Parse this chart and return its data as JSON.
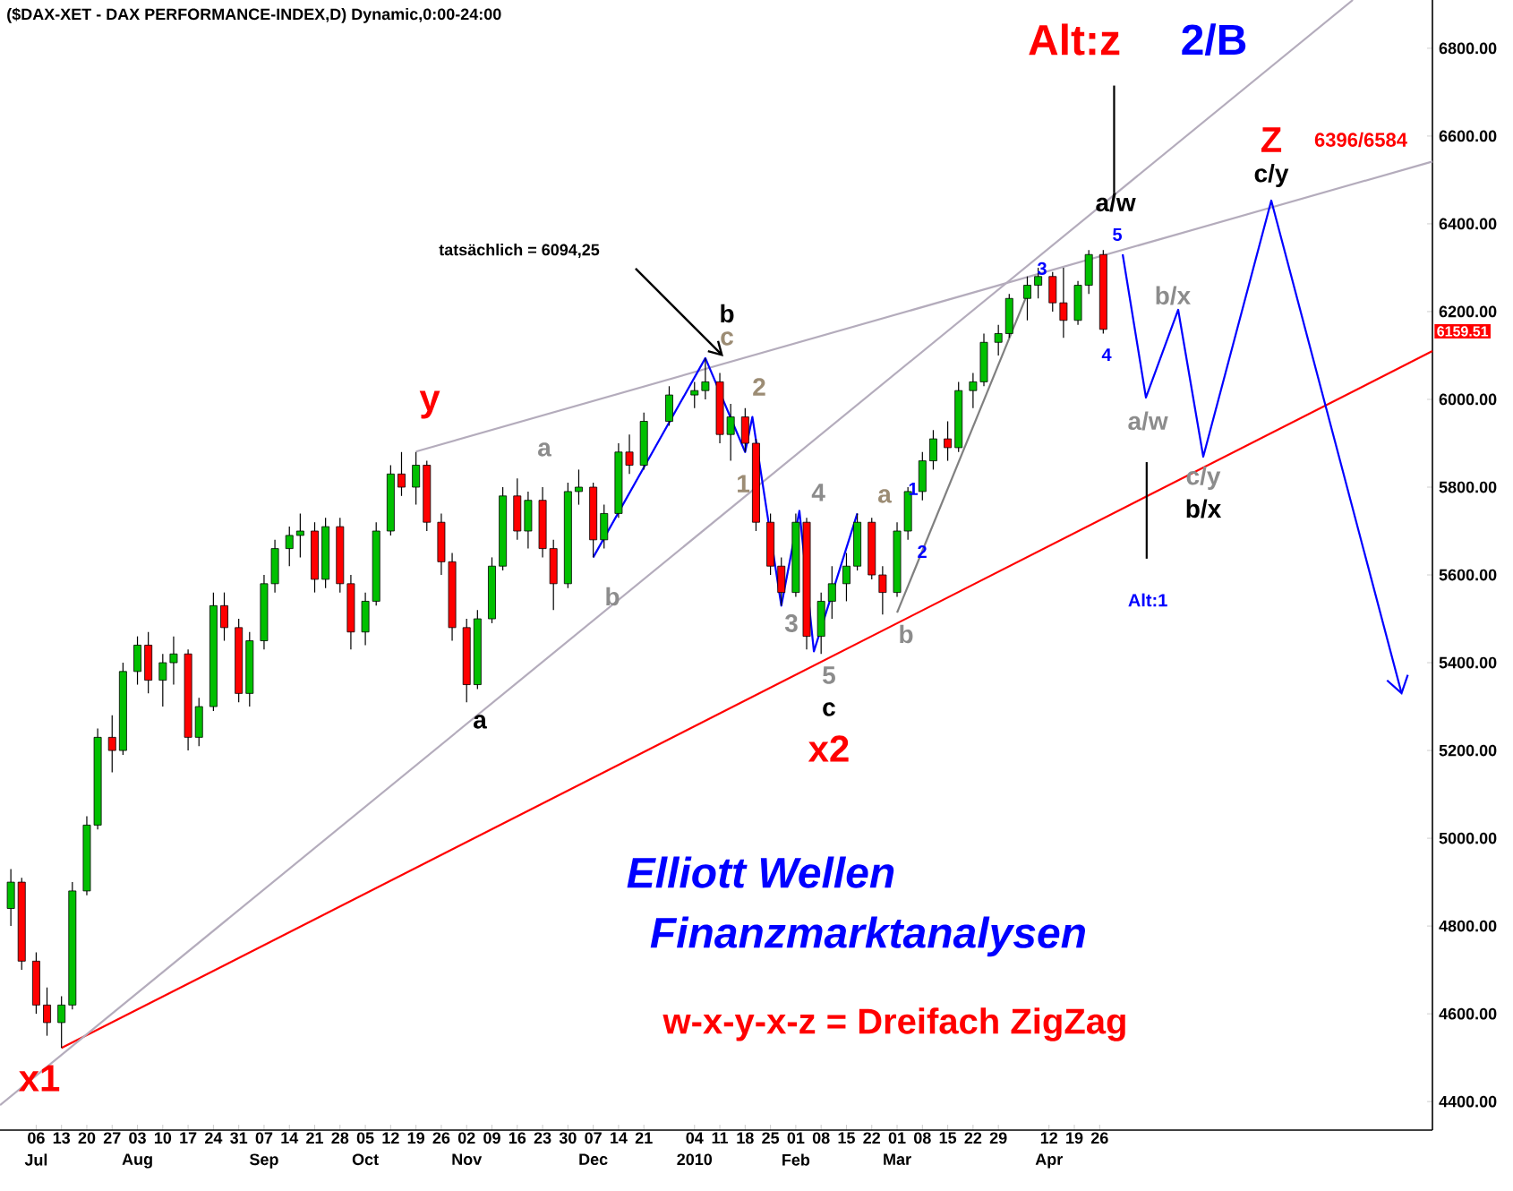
{
  "chart_data": {
    "type": "candlestick",
    "title": "($DAX-XET - DAX PERFORMANCE-INDEX,D) Dynamic,0:00-24:00",
    "x": [
      "2009-06-29",
      "2009-07-02",
      "2009-07-06",
      "2009-07-09",
      "2009-07-13",
      "2009-07-16",
      "2009-07-20",
      "2009-07-23",
      "2009-07-27",
      "2009-07-30",
      "2009-08-03",
      "2009-08-06",
      "2009-08-10",
      "2009-08-13",
      "2009-08-17",
      "2009-08-20",
      "2009-08-24",
      "2009-08-27",
      "2009-08-31",
      "2009-09-03",
      "2009-09-07",
      "2009-09-10",
      "2009-09-14",
      "2009-09-17",
      "2009-09-21",
      "2009-09-24",
      "2009-09-28",
      "2009-10-01",
      "2009-10-05",
      "2009-10-08",
      "2009-10-12",
      "2009-10-15",
      "2009-10-19",
      "2009-10-22",
      "2009-10-26",
      "2009-10-29",
      "2009-11-02",
      "2009-11-05",
      "2009-11-09",
      "2009-11-12",
      "2009-11-16",
      "2009-11-19",
      "2009-11-23",
      "2009-11-26",
      "2009-11-30",
      "2009-12-03",
      "2009-12-07",
      "2009-12-10",
      "2009-12-14",
      "2009-12-17",
      "2009-12-21",
      "2009-12-28",
      "2010-01-04",
      "2010-01-07",
      "2010-01-11",
      "2010-01-14",
      "2010-01-18",
      "2010-01-21",
      "2010-01-25",
      "2010-01-28",
      "2010-02-01",
      "2010-02-04",
      "2010-02-08",
      "2010-02-11",
      "2010-02-15",
      "2010-02-18",
      "2010-02-22",
      "2010-02-25",
      "2010-03-01",
      "2010-03-04",
      "2010-03-08",
      "2010-03-11",
      "2010-03-15",
      "2010-03-18",
      "2010-03-22",
      "2010-03-25",
      "2010-03-29",
      "2010-04-01",
      "2010-04-06",
      "2010-04-09",
      "2010-04-13",
      "2010-04-16",
      "2010-04-20",
      "2010-04-23",
      "2010-04-27"
    ],
    "ohlc": [
      [
        4840,
        4930,
        4800,
        4900
      ],
      [
        4900,
        4910,
        4700,
        4720
      ],
      [
        4720,
        4740,
        4600,
        4620
      ],
      [
        4620,
        4660,
        4550,
        4580
      ],
      [
        4580,
        4640,
        4522,
        4620
      ],
      [
        4620,
        4900,
        4610,
        4880
      ],
      [
        4880,
        5050,
        4870,
        5030
      ],
      [
        5030,
        5250,
        5020,
        5230
      ],
      [
        5230,
        5280,
        5150,
        5200
      ],
      [
        5200,
        5400,
        5190,
        5380
      ],
      [
        5380,
        5460,
        5350,
        5440
      ],
      [
        5440,
        5470,
        5330,
        5360
      ],
      [
        5360,
        5420,
        5300,
        5400
      ],
      [
        5400,
        5460,
        5350,
        5420
      ],
      [
        5420,
        5430,
        5200,
        5230
      ],
      [
        5230,
        5320,
        5210,
        5300
      ],
      [
        5300,
        5560,
        5290,
        5530
      ],
      [
        5530,
        5560,
        5450,
        5480
      ],
      [
        5480,
        5500,
        5310,
        5330
      ],
      [
        5330,
        5470,
        5300,
        5450
      ],
      [
        5450,
        5600,
        5430,
        5580
      ],
      [
        5580,
        5680,
        5560,
        5660
      ],
      [
        5660,
        5710,
        5620,
        5690
      ],
      [
        5690,
        5740,
        5640,
        5700
      ],
      [
        5700,
        5720,
        5560,
        5590
      ],
      [
        5590,
        5730,
        5570,
        5710
      ],
      [
        5710,
        5730,
        5560,
        5580
      ],
      [
        5580,
        5600,
        5430,
        5470
      ],
      [
        5470,
        5560,
        5440,
        5540
      ],
      [
        5540,
        5720,
        5530,
        5700
      ],
      [
        5700,
        5850,
        5690,
        5830
      ],
      [
        5830,
        5880,
        5780,
        5800
      ],
      [
        5800,
        5880,
        5760,
        5850
      ],
      [
        5850,
        5860,
        5700,
        5720
      ],
      [
        5720,
        5740,
        5600,
        5630
      ],
      [
        5630,
        5650,
        5450,
        5480
      ],
      [
        5480,
        5500,
        5310,
        5350
      ],
      [
        5350,
        5520,
        5340,
        5500
      ],
      [
        5500,
        5640,
        5490,
        5620
      ],
      [
        5620,
        5800,
        5610,
        5780
      ],
      [
        5780,
        5820,
        5680,
        5700
      ],
      [
        5700,
        5790,
        5660,
        5770
      ],
      [
        5770,
        5800,
        5640,
        5660
      ],
      [
        5660,
        5680,
        5520,
        5580
      ],
      [
        5580,
        5810,
        5570,
        5790
      ],
      [
        5790,
        5840,
        5760,
        5800
      ],
      [
        5800,
        5810,
        5640,
        5680
      ],
      [
        5680,
        5760,
        5660,
        5740
      ],
      [
        5740,
        5900,
        5730,
        5880
      ],
      [
        5880,
        5920,
        5830,
        5850
      ],
      [
        5850,
        5970,
        5840,
        5950
      ],
      [
        5950,
        6030,
        5940,
        6010
      ],
      [
        6010,
        6040,
        5980,
        6020
      ],
      [
        6020,
        6094,
        6000,
        6040
      ],
      [
        6040,
        6060,
        5900,
        5920
      ],
      [
        5920,
        5990,
        5860,
        5960
      ],
      [
        5960,
        5980,
        5880,
        5900
      ],
      [
        5900,
        5910,
        5700,
        5720
      ],
      [
        5720,
        5740,
        5600,
        5620
      ],
      [
        5620,
        5640,
        5530,
        5560
      ],
      [
        5560,
        5740,
        5550,
        5720
      ],
      [
        5720,
        5730,
        5430,
        5460
      ],
      [
        5460,
        5560,
        5420,
        5540
      ],
      [
        5540,
        5620,
        5500,
        5580
      ],
      [
        5580,
        5650,
        5540,
        5620
      ],
      [
        5620,
        5740,
        5610,
        5720
      ],
      [
        5720,
        5730,
        5590,
        5600
      ],
      [
        5600,
        5620,
        5510,
        5560
      ],
      [
        5560,
        5720,
        5550,
        5700
      ],
      [
        5700,
        5800,
        5680,
        5790
      ],
      [
        5790,
        5880,
        5770,
        5860
      ],
      [
        5860,
        5930,
        5840,
        5910
      ],
      [
        5910,
        5950,
        5860,
        5890
      ],
      [
        5890,
        6040,
        5880,
        6020
      ],
      [
        6020,
        6060,
        5980,
        6040
      ],
      [
        6040,
        6150,
        6030,
        6130
      ],
      [
        6130,
        6170,
        6100,
        6150
      ],
      [
        6150,
        6240,
        6140,
        6230
      ],
      [
        6230,
        6280,
        6180,
        6260
      ],
      [
        6260,
        6300,
        6230,
        6280
      ],
      [
        6280,
        6290,
        6200,
        6220
      ],
      [
        6220,
        6300,
        6140,
        6180
      ],
      [
        6180,
        6270,
        6170,
        6260
      ],
      [
        6260,
        6340,
        6240,
        6330
      ],
      [
        6330,
        6340,
        6150,
        6159.51
      ]
    ],
    "colors": [
      "#00c000",
      "#ff0000",
      "#ff0000",
      "#ff0000",
      "#00c000",
      "#00c000",
      "#00c000",
      "#00c000",
      "#ff0000",
      "#00c000",
      "#00c000",
      "#ff0000",
      "#00c000",
      "#00c000",
      "#ff0000",
      "#00c000",
      "#00c000",
      "#ff0000",
      "#ff0000",
      "#00c000",
      "#00c000",
      "#00c000",
      "#00c000",
      "#00c000",
      "#ff0000",
      "#00c000",
      "#ff0000",
      "#ff0000",
      "#00c000",
      "#00c000",
      "#00c000",
      "#ff0000",
      "#00c000",
      "#ff0000",
      "#ff0000",
      "#ff0000",
      "#ff0000",
      "#00c000",
      "#00c000",
      "#00c000",
      "#ff0000",
      "#00c000",
      "#ff0000",
      "#ff0000",
      "#00c000",
      "#00c000",
      "#ff0000",
      "#00c000",
      "#00c000",
      "#ff0000",
      "#00c000",
      "#00c000",
      "#00c000",
      "#00c000",
      "#ff0000",
      "#00c000",
      "#ff0000",
      "#ff0000",
      "#ff0000",
      "#ff0000",
      "#00c000",
      "#ff0000",
      "#00c000",
      "#00c000",
      "#00c000",
      "#00c000",
      "#ff0000",
      "#ff0000",
      "#00c000",
      "#00c000",
      "#00c000",
      "#00c000",
      "#ff0000",
      "#00c000",
      "#00c000",
      "#00c000",
      "#00c000",
      "#00c000",
      "#00c000",
      "#00c000",
      "#ff0000",
      "#ff0000",
      "#00c000",
      "#00c000",
      "#ff0000"
    ],
    "series": [
      {
        "type": "line",
        "color": "#ff0000",
        "x": [
          "2009-07-13",
          "2010-07-27"
        ],
        "values": [
          4522,
          6110
        ]
      },
      {
        "type": "line",
        "color": "#b4acbc",
        "x": [
          "2009-06-26",
          "2010-07-05"
        ],
        "values": [
          4392,
          6910
        ]
      },
      {
        "type": "line",
        "color": "#b4acbc",
        "x": [
          "2009-10-19",
          "2010-07-27"
        ],
        "values": [
          5881,
          6542
        ]
      },
      {
        "type": "line",
        "color": "#808080",
        "x": [
          "2010-03-01",
          "2010-04-06"
        ],
        "values": [
          5514,
          6240
        ]
      },
      {
        "type": "line",
        "color": "#0000ff",
        "x": [
          "2009-12-07",
          "2010-01-07",
          "2010-01-18",
          "2010-01-20",
          "2010-01-28",
          "2010-02-02",
          "2010-02-06",
          "2010-02-18"
        ],
        "values": [
          5640,
          6094,
          5880,
          5960,
          5530,
          5746,
          5426,
          5740
        ]
      },
      {
        "type": "line",
        "color": "#000000",
        "x": [
          "2010-04-30",
          "2010-04-30"
        ],
        "values": [
          6470,
          6715
        ]
      },
      {
        "type": "line",
        "color": "#000000",
        "x": [
          "2010-05-09",
          "2010-05-09"
        ],
        "values": [
          5637,
          5857
        ]
      }
    ],
    "xlim": [
      "2009-06-26",
      "2010-07-27"
    ],
    "x2lim": [
      "2009-06-26",
      "2010-07-27"
    ],
    "ylim": [
      4335,
      6910
    ],
    "xticks": [
      {
        "value": "2009-07-06",
        "label": "06"
      },
      {
        "value": "2009-07-13",
        "label": "13"
      },
      {
        "value": "2009-07-20",
        "label": "20"
      },
      {
        "value": "2009-07-27",
        "label": "27"
      },
      {
        "value": "2009-08-03",
        "label": "03"
      },
      {
        "value": "2009-08-10",
        "label": "10"
      },
      {
        "value": "2009-08-17",
        "label": "17"
      },
      {
        "value": "2009-08-24",
        "label": "24"
      },
      {
        "value": "2009-08-31",
        "label": "31"
      },
      {
        "value": "2009-09-07",
        "label": "07"
      },
      {
        "value": "2009-09-14",
        "label": "14"
      },
      {
        "value": "2009-09-21",
        "label": "21"
      },
      {
        "value": "2009-09-28",
        "label": "28"
      },
      {
        "value": "2009-10-05",
        "label": "05"
      },
      {
        "value": "2009-10-12",
        "label": "12"
      },
      {
        "value": "2009-10-19",
        "label": "19"
      },
      {
        "value": "2009-10-26",
        "label": "26"
      },
      {
        "value": "2009-11-02",
        "label": "02"
      },
      {
        "value": "2009-11-09",
        "label": "09"
      },
      {
        "value": "2009-11-16",
        "label": "16"
      },
      {
        "value": "2009-11-23",
        "label": "23"
      },
      {
        "value": "2009-11-30",
        "label": "30"
      },
      {
        "value": "2009-12-07",
        "label": "07"
      },
      {
        "value": "2009-12-14",
        "label": "14"
      },
      {
        "value": "2009-12-21",
        "label": "21"
      },
      {
        "value": "2010-01-04",
        "label": "04"
      },
      {
        "value": "2010-01-11",
        "label": "11"
      },
      {
        "value": "2010-01-18",
        "label": "18"
      },
      {
        "value": "2010-01-25",
        "label": "25"
      },
      {
        "value": "2010-02-01",
        "label": "01"
      },
      {
        "value": "2010-02-08",
        "label": "08"
      },
      {
        "value": "2010-02-15",
        "label": "15"
      },
      {
        "value": "2010-02-22",
        "label": "22"
      },
      {
        "value": "2010-03-01",
        "label": "01"
      },
      {
        "value": "2010-03-08",
        "label": "08"
      },
      {
        "value": "2010-03-15",
        "label": "15"
      },
      {
        "value": "2010-03-22",
        "label": "22"
      },
      {
        "value": "2010-03-29",
        "label": "29"
      },
      {
        "value": "2010-04-12",
        "label": "12"
      },
      {
        "value": "2010-04-19",
        "label": "19"
      },
      {
        "value": "2010-04-26",
        "label": "26"
      }
    ],
    "x2ticks": [
      {
        "value": "2009-07-06",
        "label": "Jul"
      },
      {
        "value": "2009-08-03",
        "label": "Aug"
      },
      {
        "value": "2009-09-07",
        "label": "Sep"
      },
      {
        "value": "2009-10-05",
        "label": "Oct"
      },
      {
        "value": "2009-11-02",
        "label": "Nov"
      },
      {
        "value": "2009-12-07",
        "label": "Dec"
      },
      {
        "value": "2010-01-04",
        "label": "2010"
      },
      {
        "value": "2010-02-01",
        "label": "Feb"
      },
      {
        "value": "2010-03-01",
        "label": "Mar"
      },
      {
        "value": "2010-04-12",
        "label": "Apr"
      }
    ],
    "yticks": [
      {
        "value": 4400,
        "label": "4400.00"
      },
      {
        "value": 4600,
        "label": "4600.00"
      },
      {
        "value": 4800,
        "label": "4800.00"
      },
      {
        "value": 5000,
        "label": "5000.00"
      },
      {
        "value": 5200,
        "label": "5200.00"
      },
      {
        "value": 5400,
        "label": "5400.00"
      },
      {
        "value": 5600,
        "label": "5600.00"
      },
      {
        "value": 5800,
        "label": "5800.00"
      },
      {
        "value": 6000,
        "label": "6000.00"
      },
      {
        "value": 6200,
        "label": "6200.00"
      },
      {
        "value": 6400,
        "label": "6400.00"
      },
      {
        "value": 6600,
        "label": "6600.00"
      },
      {
        "value": 6800,
        "label": "6800.00"
      }
    ],
    "annotations": [
      "x1",
      "y",
      "a",
      "a",
      "b",
      "b",
      "c",
      "2",
      "1",
      "3",
      "4",
      "5",
      "c",
      "x2",
      "a",
      "1",
      "2",
      "b",
      "3",
      "5",
      "4",
      "a/w",
      "Alt:z",
      "2/B",
      "b/x",
      "a/w",
      "c/y",
      "b/x",
      "Alt:1",
      "c/y",
      "Z",
      "6396/6584",
      "tatsächlich = 6094,25",
      "Elliott Wellen",
      "Finanzmarktanalysen",
      "w-x-y-x-z = Dreifach ZigZag",
      "6159.51"
    ]
  }
}
